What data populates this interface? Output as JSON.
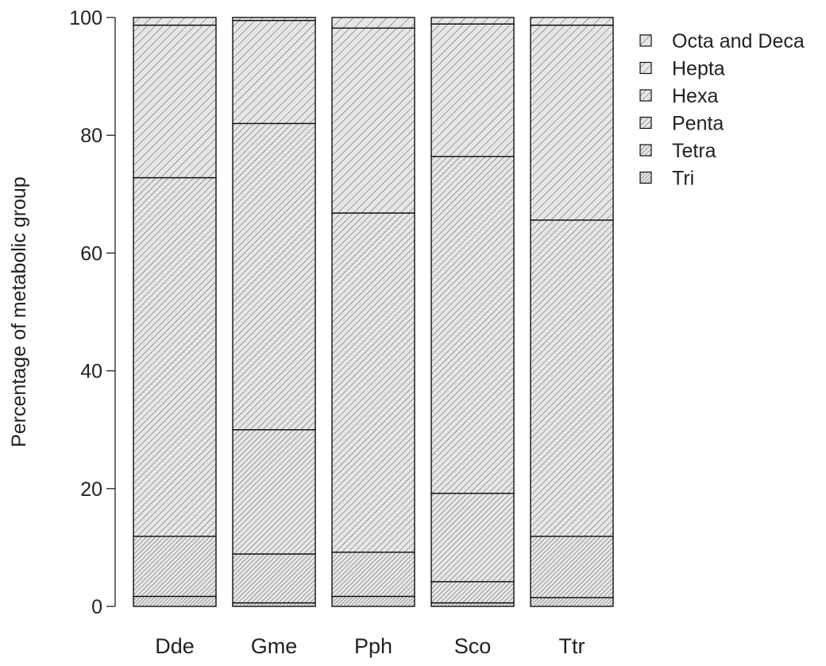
{
  "chart_data": {
    "type": "bar",
    "stacked": true,
    "title": "",
    "xlabel": "",
    "ylabel": "Percentage of metabolic group",
    "ylim": [
      0,
      100
    ],
    "yticks": [
      0,
      20,
      40,
      60,
      80,
      100
    ],
    "grid": false,
    "legend_position": "top-right",
    "categories": [
      "Dde",
      "Gme",
      "Pph",
      "Sco",
      "Ttr"
    ],
    "series": [
      {
        "name": "Tri",
        "values": [
          1.7,
          0.6,
          1.7,
          0.6,
          1.5
        ]
      },
      {
        "name": "Tetra",
        "values": [
          10.2,
          8.3,
          7.5,
          3.6,
          10.4
        ]
      },
      {
        "name": "Penta",
        "values": [
          0.0,
          21.1,
          0.0,
          15.0,
          0.0
        ]
      },
      {
        "name": "Hexa",
        "values": [
          60.9,
          52.0,
          57.6,
          57.2,
          53.7
        ]
      },
      {
        "name": "Hepta",
        "values": [
          25.9,
          17.5,
          31.4,
          22.5,
          33.1
        ]
      },
      {
        "name": "Octa and Deca",
        "values": [
          1.3,
          0.5,
          1.8,
          1.1,
          1.3
        ]
      }
    ],
    "legend_order": [
      "Octa and Deca",
      "Hepta",
      "Hexa",
      "Penta",
      "Tetra",
      "Tri"
    ],
    "colors": {
      "bar_fill": "#e6e6e6",
      "hatch": "#555555",
      "outline": "#111111",
      "background": "#ffffff"
    }
  }
}
